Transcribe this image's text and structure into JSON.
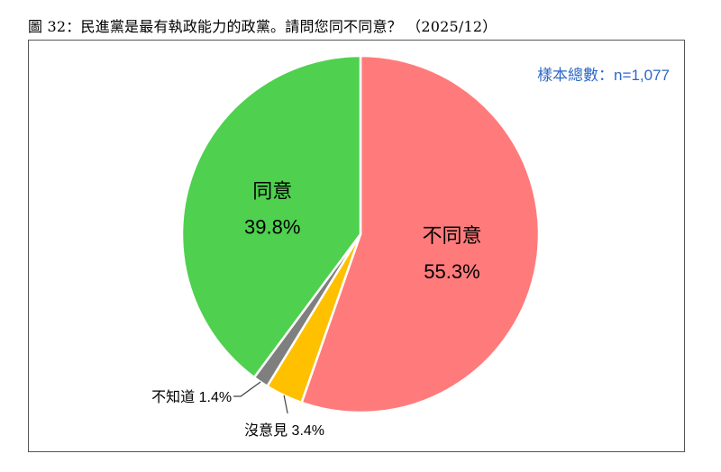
{
  "title": "圖 32：民進黨是最有執政能力的政黨。請問您同不同意？ （2025/12）",
  "sample_size": "樣本總數：n=1,077",
  "colors": {
    "disagree": "#FF7B7B",
    "no_opinion": "#FFC000",
    "dont_know": "#7F7F7F",
    "agree": "#4FD04F",
    "sample_text": "#2E68C8"
  },
  "chart_data": {
    "type": "pie",
    "title": "",
    "slices": [
      {
        "label": "不同意",
        "value": 55.3,
        "value_label": "55.3%",
        "color": "#FF7B7B",
        "label_position": "inside"
      },
      {
        "label": "沒意見",
        "value": 3.4,
        "value_label": "3.4%",
        "color": "#FFC000",
        "label_position": "outside"
      },
      {
        "label": "不知道",
        "value": 1.4,
        "value_label": "1.4%",
        "color": "#7F7F7F",
        "label_position": "outside"
      },
      {
        "label": "同意",
        "value": 39.8,
        "value_label": "39.8%",
        "color": "#4FD04F",
        "label_position": "inside"
      }
    ]
  }
}
